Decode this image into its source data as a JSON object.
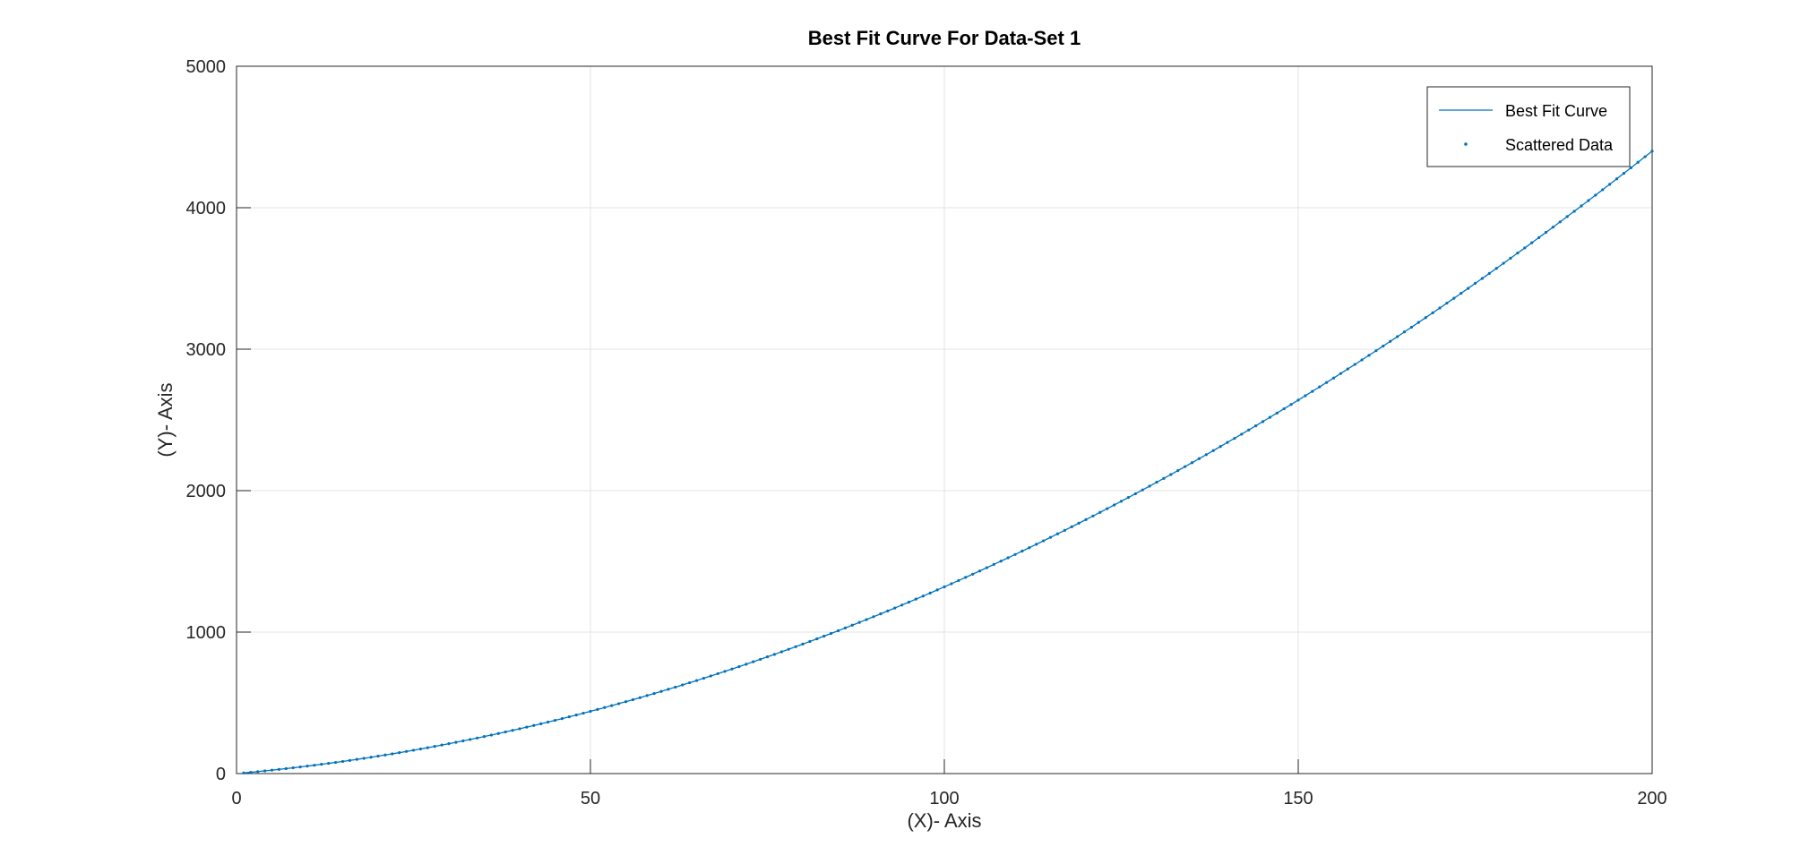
{
  "chart_data": {
    "type": "line",
    "title": "Best Fit Curve For Data-Set 1",
    "xlabel": "(X)-  Axis",
    "ylabel": "(Y)-  Axis",
    "xlim": [
      0,
      200
    ],
    "ylim": [
      0,
      5000
    ],
    "x_ticks": [
      "0",
      "50",
      "100",
      "150",
      "200"
    ],
    "y_ticks": [
      "0",
      "1000",
      "2000",
      "3000",
      "4000",
      "5000"
    ],
    "grid": true,
    "legend_position": "top-right",
    "legend": {
      "curve_label": "Best Fit Curve",
      "scatter_label": "Scattered Data"
    },
    "series": [
      {
        "name": "Best Fit Curve",
        "kind": "line",
        "model": {
          "form": "y = a*x^2 + b*x",
          "a": 0.088,
          "b": 4.4,
          "x_start": 1,
          "x_end": 200
        }
      },
      {
        "name": "Scattered Data",
        "kind": "scatter",
        "model": {
          "form": "y = a*x^2 + b*x",
          "a": 0.088,
          "b": 4.4,
          "x_start": 1,
          "x_end": 200,
          "x_step": 1
        }
      }
    ],
    "colors": {
      "series": "#0072BD",
      "axis": "#262626",
      "grid": "#e3e3e3",
      "legend_border": "#262626"
    }
  }
}
